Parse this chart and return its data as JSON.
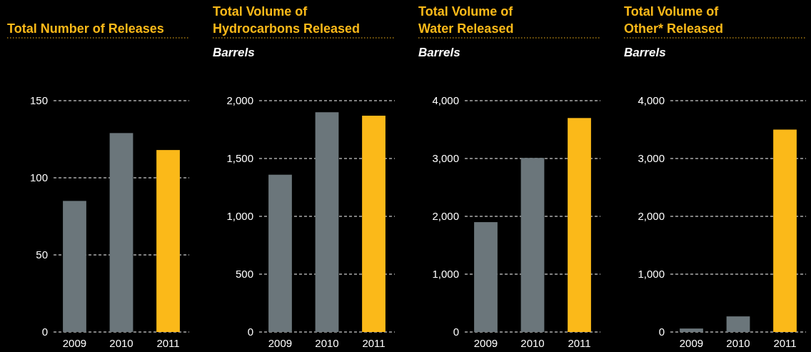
{
  "chart_data": [
    {
      "type": "bar",
      "title": "Total Number of Releases",
      "categories": [
        "2009",
        "2010",
        "2011"
      ],
      "values": [
        85,
        129,
        118
      ],
      "colors": [
        "#6b767b",
        "#6b767b",
        "#fbb919"
      ],
      "ylim": [
        0,
        150
      ],
      "yticks": [
        0,
        50,
        100,
        150
      ],
      "grid": "y"
    },
    {
      "type": "bar",
      "title": "Total Volume of\nHydrocarbons Released",
      "subtitle": "Barrels",
      "categories": [
        "2009",
        "2010",
        "2011"
      ],
      "values": [
        1360,
        1900,
        1870
      ],
      "colors": [
        "#6b767b",
        "#6b767b",
        "#fbb919"
      ],
      "ylim": [
        0,
        2000
      ],
      "yticks": [
        {
          "value": 0,
          "label": "0"
        },
        {
          "value": 500,
          "label": "500"
        },
        {
          "value": 1000,
          "label": "1,000"
        },
        {
          "value": 1500,
          "label": "1,500"
        },
        {
          "value": 2000,
          "label": "2,000"
        }
      ],
      "grid": "y"
    },
    {
      "type": "bar",
      "title": "Total Volume of\nWater Released",
      "subtitle": "Barrels",
      "categories": [
        "2009",
        "2010",
        "2011"
      ],
      "values": [
        1900,
        3010,
        3700
      ],
      "colors": [
        "#6b767b",
        "#6b767b",
        "#fbb919"
      ],
      "ylim": [
        0,
        4000
      ],
      "yticks": [
        {
          "value": 0,
          "label": "0"
        },
        {
          "value": 1000,
          "label": "1,000"
        },
        {
          "value": 2000,
          "label": "2,000"
        },
        {
          "value": 3000,
          "label": "3,000"
        },
        {
          "value": 4000,
          "label": "4,000"
        }
      ],
      "grid": "y"
    },
    {
      "type": "bar",
      "title": "Total Volume of\nOther* Released",
      "subtitle": "Barrels",
      "categories": [
        "2009",
        "2010",
        "2011"
      ],
      "values": [
        60,
        270,
        3500
      ],
      "colors": [
        "#6b767b",
        "#6b767b",
        "#fbb919"
      ],
      "ylim": [
        0,
        4000
      ],
      "yticks": [
        {
          "value": 0,
          "label": "0"
        },
        {
          "value": 1000,
          "label": "1,000"
        },
        {
          "value": 2000,
          "label": "2,000"
        },
        {
          "value": 3000,
          "label": "3,000"
        },
        {
          "value": 4000,
          "label": "4,000"
        }
      ],
      "grid": "y"
    }
  ]
}
